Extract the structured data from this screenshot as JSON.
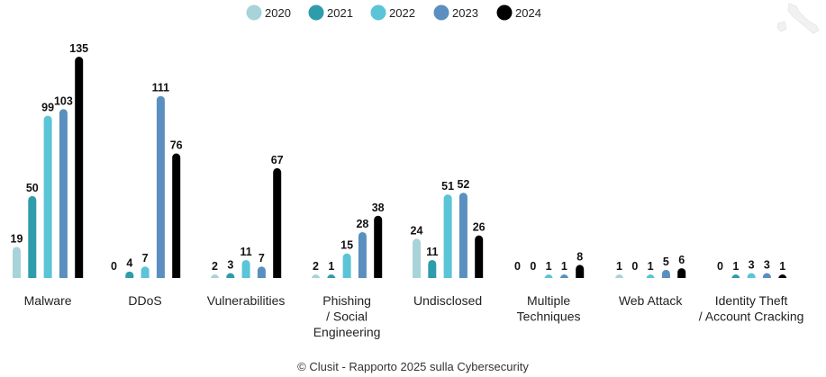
{
  "chart_data": {
    "type": "bar",
    "categories": [
      [
        "Malware"
      ],
      [
        "DDoS"
      ],
      [
        "Vulnerabilities"
      ],
      [
        "Phishing",
        "/ Social",
        "Engineering"
      ],
      [
        "Undisclosed"
      ],
      [
        "Multiple",
        "Techniques"
      ],
      [
        "Web Attack"
      ],
      [
        "Identity Theft",
        "/ Account Cracking"
      ]
    ],
    "series": [
      {
        "name": "2020",
        "color": "#a7d3d9",
        "values": [
          19,
          0,
          2,
          2,
          24,
          0,
          1,
          0
        ]
      },
      {
        "name": "2021",
        "color": "#2e9cab",
        "values": [
          50,
          4,
          3,
          1,
          11,
          0,
          0,
          1
        ]
      },
      {
        "name": "2022",
        "color": "#5bc4d6",
        "values": [
          99,
          7,
          11,
          15,
          51,
          1,
          1,
          3
        ]
      },
      {
        "name": "2023",
        "color": "#5a8fbf",
        "values": [
          103,
          111,
          7,
          28,
          52,
          1,
          5,
          3
        ]
      },
      {
        "name": "2024",
        "color": "#000000",
        "values": [
          135,
          76,
          67,
          38,
          26,
          8,
          6,
          1
        ]
      }
    ],
    "ylim": [
      0,
      135
    ],
    "grid": false,
    "legend": "top-center",
    "data_labels": true
  },
  "footer": {
    "credit": "© Clusit - Rapporto 2025 sulla Cybersecurity"
  }
}
